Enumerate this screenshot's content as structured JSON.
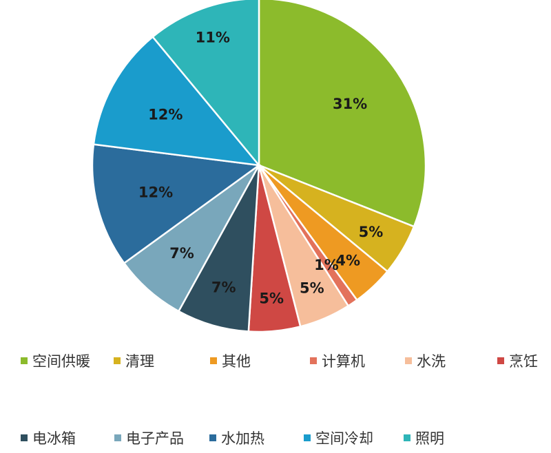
{
  "chart_data": {
    "type": "pie",
    "categories": [
      "空间供暖",
      "清理",
      "其他",
      "计算机",
      "水洗",
      "烹饪",
      "电冰箱",
      "电子产品",
      "水加热",
      "空间冷却",
      "照明"
    ],
    "values": [
      31,
      5,
      4,
      1,
      5,
      5,
      7,
      7,
      12,
      12,
      11
    ],
    "labels": [
      "31%",
      "5%",
      "4%",
      "1%",
      "5%",
      "5%",
      "7%",
      "7%",
      "12%",
      "12%",
      "11%"
    ],
    "colors": [
      "#8cbb2c",
      "#d6b21f",
      "#ee9a22",
      "#e3725b",
      "#f6be9b",
      "#cf4844",
      "#2f4f5f",
      "#79a7bb",
      "#2b6c9c",
      "#1a9ccc",
      "#2eb5b8"
    ],
    "legend_position": "bottom",
    "title": ""
  }
}
